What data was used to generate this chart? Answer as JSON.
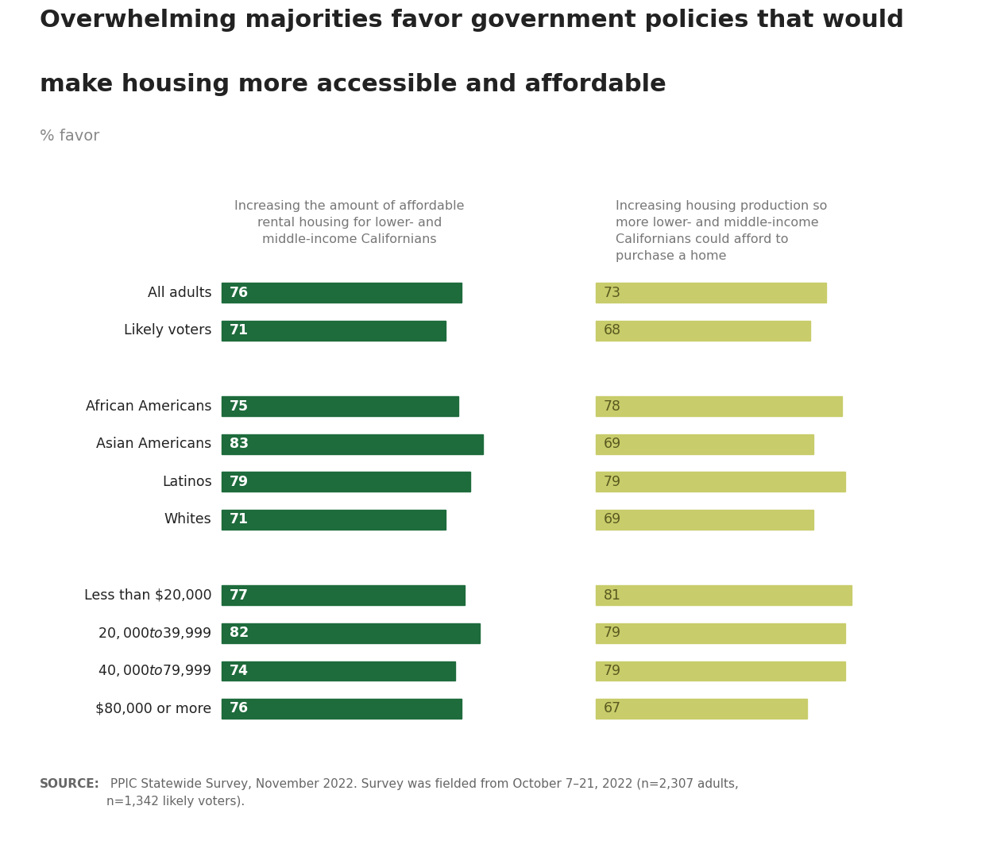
{
  "title_line1": "Overwhelming majorities favor government policies that would",
  "title_line2": "make housing more accessible and affordable",
  "subtitle": "% favor",
  "col1_header": "Increasing the amount of affordable\nrental housing for lower- and\nmiddle-income Californians",
  "col2_header": "Increasing housing production so\nmore lower- and middle-income\nCalifornians could afford to\npurchase a home",
  "categories": [
    "All adults",
    "Likely voters",
    "",
    "African Americans",
    "Asian Americans",
    "Latinos",
    "Whites",
    "",
    "Less than $20,000",
    "$20,000 to $39,999",
    "$40,000 to $79,999",
    "$80,000 or more"
  ],
  "col1_values": [
    76,
    71,
    null,
    75,
    83,
    79,
    71,
    null,
    77,
    82,
    74,
    76
  ],
  "col2_values": [
    73,
    68,
    null,
    78,
    69,
    79,
    69,
    null,
    81,
    79,
    79,
    67
  ],
  "col1_color": "#1e6b3c",
  "col2_color": "#c8cc6a",
  "source_bold": "SOURCE:",
  "source_rest": " PPIC Statewide Survey, November 2022. Survey was fielded from October 7–21, 2022 (n=2,307 adults,\nn=1,342 likely voters).",
  "bg_color": "#ffffff",
  "footer_bg_color": "#e8e8e8",
  "text_color": "#222222",
  "subtitle_color": "#888888",
  "header_color": "#777777",
  "value_color_dark": "#5a5a20",
  "source_color": "#666666"
}
